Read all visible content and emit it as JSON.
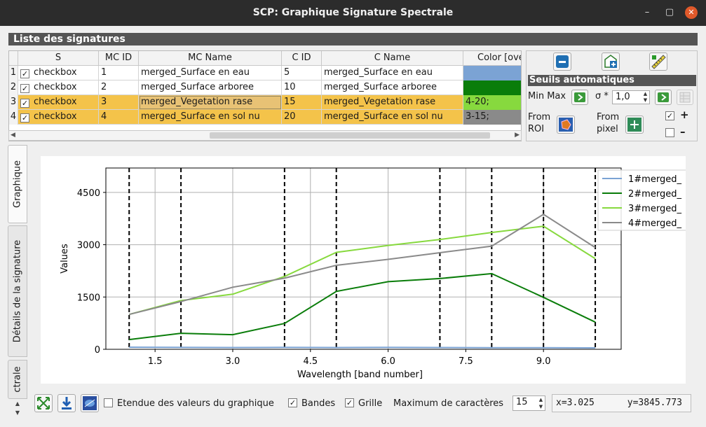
{
  "window": {
    "title": "SCP: Graphique Signature Spectrale",
    "minimize": "–",
    "maximize": "▢",
    "close": "✕"
  },
  "signature_list": {
    "section_title": "Liste des signatures",
    "columns": [
      "S",
      "MC ID",
      "MC Name",
      "C ID",
      "C Name",
      "Color [overall]"
    ],
    "rows": [
      {
        "num": "1",
        "checked": "✓",
        "s": "checkbox",
        "mc_id": "1",
        "mc_name": "merged_Surface en eau",
        "c_id": "5",
        "c_name": "merged_Surface en eau",
        "color": "#7ba3d4",
        "color_text": ""
      },
      {
        "num": "2",
        "checked": "✓",
        "s": "checkbox",
        "mc_id": "2",
        "mc_name": "merged_Surface arboree",
        "c_id": "10",
        "c_name": "merged_Surface arboree",
        "color": "#0a7d0a",
        "color_text": ""
      },
      {
        "num": "3",
        "checked": "✓",
        "s": "checkbox",
        "mc_id": "3",
        "mc_name": "merged_Vegetation rase",
        "c_id": "15",
        "c_name": "merged_Vegetation rase",
        "color": "#87d93e",
        "color_text": "4-20;"
      },
      {
        "num": "4",
        "checked": "✓",
        "s": "checkbox",
        "mc_id": "4",
        "mc_name": "merged_Surface en sol nu",
        "c_id": "20",
        "c_name": "merged_Surface en sol nu",
        "color": "#8a8a8a",
        "color_text": "3-15;"
      }
    ],
    "scroll_left": "◀",
    "scroll_right": "▶"
  },
  "tools": {
    "remove_icon": "minus-icon",
    "import_icon": "import-library-icon",
    "edit_icon": "ruler-pencil-icon",
    "section_title": "Seuils automatiques",
    "minmax_label": "Min Max",
    "sigma_label": "σ *",
    "sigma_value": "1,0",
    "from_roi_label_1": "From",
    "from_roi_label_2": "ROI",
    "from_pixel_label_1": "From",
    "from_pixel_label_2": "pixel",
    "plus_label": "+",
    "minus_label": "–",
    "plus_checked": "✓"
  },
  "tabs": {
    "graph": "Graphique",
    "details": "Détails de la signature",
    "partial": "ctrale"
  },
  "chart_data": {
    "type": "line",
    "x": [
      1,
      2,
      3,
      4,
      5,
      6,
      7,
      8,
      9,
      10
    ],
    "xlabel": "Wavelength [band number]",
    "ylabel": "Values",
    "xlim": [
      0.55,
      10.5
    ],
    "ylim": [
      0,
      5200
    ],
    "xticks": [
      1.5,
      3.0,
      4.5,
      6.0,
      7.5,
      9.0
    ],
    "xtick_labels": [
      "1.5",
      "3.0",
      "4.5",
      "6.0",
      "7.5",
      "9.0"
    ],
    "yticks": [
      0,
      1500,
      3000,
      4500
    ],
    "ytick_labels": [
      "0",
      "1500",
      "3000",
      "4500"
    ],
    "band_lines": [
      1,
      2,
      4,
      5,
      7,
      8,
      9,
      10
    ],
    "grid": true,
    "legend_position": "top-right",
    "series": [
      {
        "name": "1#merged_",
        "color": "#7ba3d4",
        "values": [
          60,
          55,
          50,
          55,
          50,
          55,
          50,
          45,
          45,
          40
        ]
      },
      {
        "name": "2#merged_",
        "color": "#0a7d0a",
        "values": [
          280,
          460,
          420,
          740,
          1660,
          1940,
          2030,
          2170,
          1490,
          780
        ]
      },
      {
        "name": "3#merged_",
        "color": "#87d93e",
        "values": [
          1000,
          1400,
          1580,
          2090,
          2780,
          2980,
          3150,
          3350,
          3530,
          2600
        ]
      },
      {
        "name": "4#merged_",
        "color": "#8a8a8a",
        "values": [
          1000,
          1370,
          1780,
          2040,
          2410,
          2580,
          2770,
          2960,
          3870,
          2920
        ]
      }
    ]
  },
  "bottom": {
    "zoom_icon": "fit-zoom-icon",
    "save_icon": "download-icon",
    "image_icon": "plot-image-icon",
    "range_label": "Etendue des valeurs du graphique",
    "range_checked": "",
    "bands_label": "Bandes",
    "bands_checked": "✓",
    "grid_label": "Grille",
    "grid_checked": "✓",
    "maxchar_label": "Maximum de caractères",
    "maxchar_value": "15",
    "coords": "x=3.025      y=3845.773"
  },
  "colors": {
    "accent": "#f4c34a",
    "panel": "#555555",
    "close": "#e0592a"
  }
}
